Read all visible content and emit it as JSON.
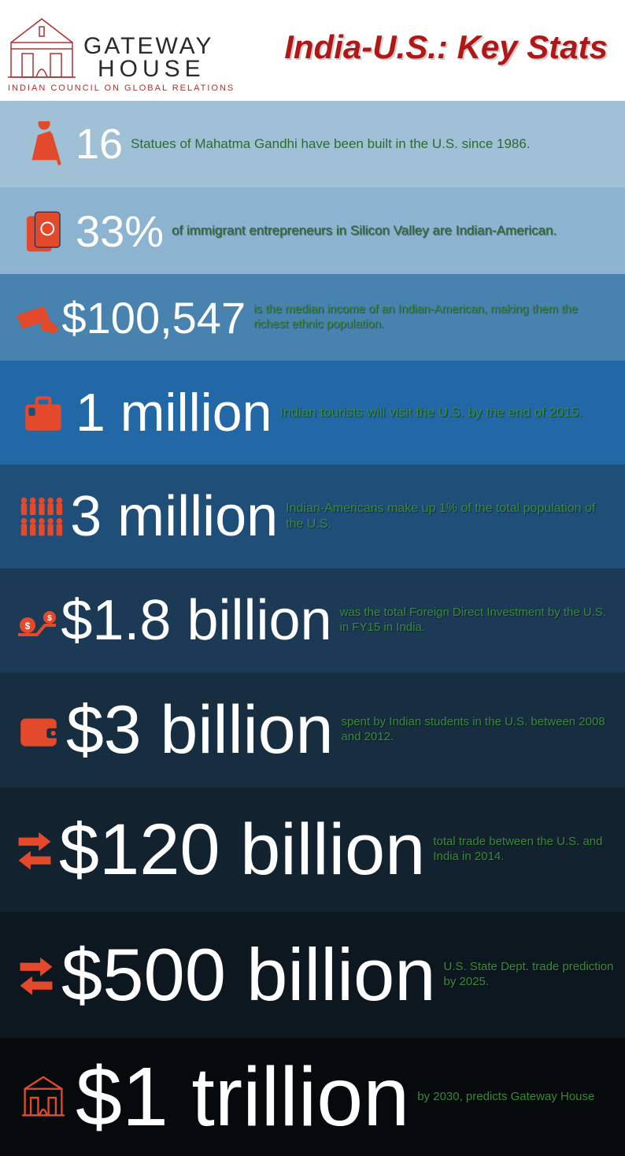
{
  "header": {
    "org_line1": "GATEWAY",
    "org_line2": "HOUSE",
    "org_sub": "INDIAN COUNCIL ON GLOBAL RELATIONS",
    "title": "India-U.S.: Key Stats"
  },
  "colors": {
    "icon": "#e24a2b",
    "stat": "#ffffff",
    "desc": "#3a8a3a",
    "title": "#b01818"
  },
  "rows": [
    {
      "bg": "#a0c0d6",
      "height": 110,
      "icon": "gandhi",
      "stat": "16",
      "stat_size": 54,
      "desc": "Statues of Mahatma Gandhi have been built in the U.S. since 1986.",
      "desc_size": 17
    },
    {
      "bg": "#8cb3cf",
      "height": 110,
      "icon": "passport",
      "stat": "33%",
      "stat_size": 56,
      "desc": "of immigrant entrepreneurs in Silicon Valley are Indian-American.",
      "desc_size": 17
    },
    {
      "bg": "#4883b0",
      "height": 110,
      "icon": "cash",
      "stat": "$100,547",
      "stat_size": 56,
      "desc": "is the median income of an Indian-American, making them the richest ethnic population.",
      "desc_size": 15
    },
    {
      "bg": "#2368a6",
      "height": 132,
      "icon": "suitcase",
      "stat": "1 million",
      "stat_size": 68,
      "desc": "Indian tourists will visit the U.S. by the end of 2015.",
      "desc_size": 17
    },
    {
      "bg": "#1f4e78",
      "height": 132,
      "icon": "people",
      "stat": "3 million",
      "stat_size": 72,
      "desc": "Indian-Americans make up 1% of the total population of the U.S.",
      "desc_size": 16
    },
    {
      "bg": "#1c3a55",
      "height": 132,
      "icon": "invest",
      "stat": "$1.8 billion",
      "stat_size": 72,
      "desc": "was the total Foreign Direct Investment by the U.S. in FY15 in India.",
      "desc_size": 15
    },
    {
      "bg": "#172d40",
      "height": 146,
      "icon": "wallet",
      "stat": "$3 billion",
      "stat_size": 86,
      "desc": "spent by Indian students in the U.S. between 2008 and 2012.",
      "desc_size": 15
    },
    {
      "bg": "#13222f",
      "height": 158,
      "icon": "arrows",
      "stat": "$120 billion",
      "stat_size": 92,
      "desc": "total trade between the U.S. and India in 2014.",
      "desc_size": 15
    },
    {
      "bg": "#0d1720",
      "height": 160,
      "icon": "arrows",
      "stat": "$500 billion",
      "stat_size": 94,
      "desc": "U.S. State Dept. trade prediction by 2025.",
      "desc_size": 15
    },
    {
      "bg": "#060a0d",
      "height": 150,
      "icon": "gateway",
      "stat": "$1 trillion",
      "stat_size": 106,
      "desc": "by 2030, predicts Gateway House",
      "desc_size": 15
    }
  ]
}
